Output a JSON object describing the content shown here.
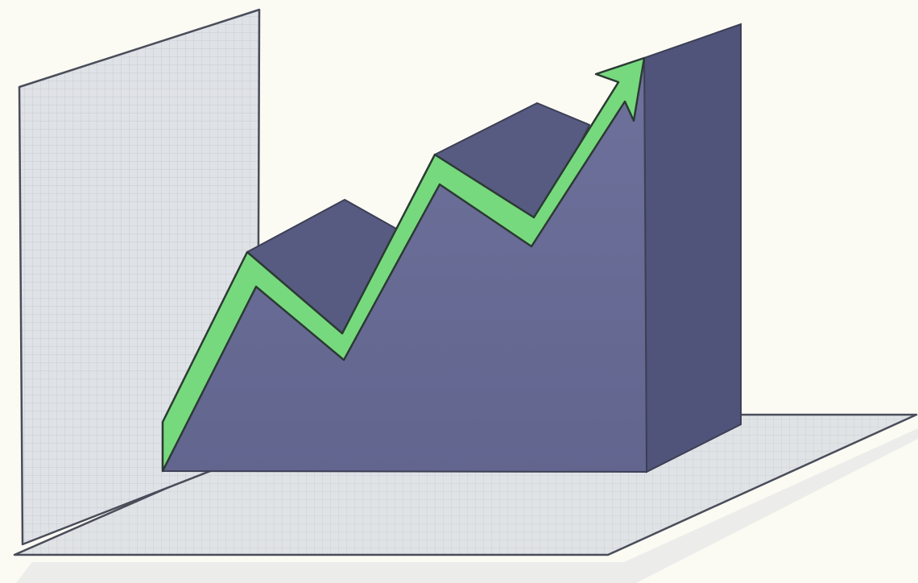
{
  "illustration": {
    "subject": "3d-rising-chart-with-arrow",
    "colors": {
      "background": "#fbfbf4",
      "grid_panel": "#dfe2e6",
      "grid_line": "#c2c7ce",
      "outline": "#4a4d59",
      "solid_front": "#6a6e98",
      "solid_top": "#565a80",
      "solid_side": "#4f5377",
      "arrow_fill": "#77d97e",
      "arrow_stroke": "#2c3a34",
      "shadow": "#e9ebe8"
    }
  }
}
